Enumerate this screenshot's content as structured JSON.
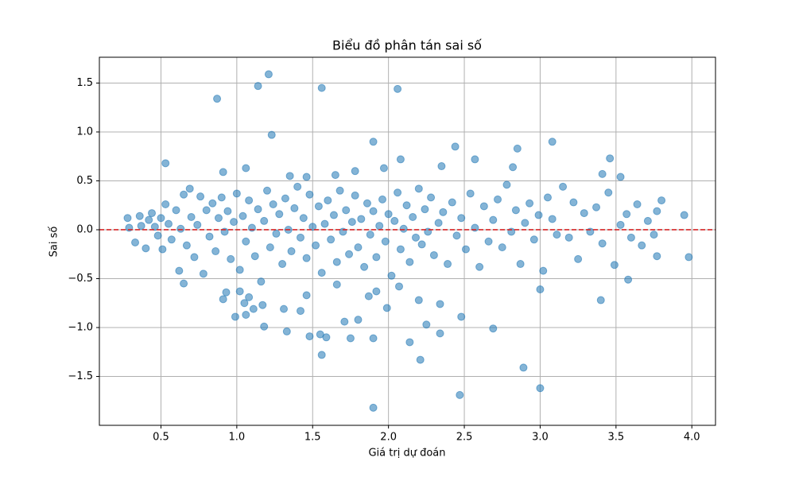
{
  "chart_data": {
    "type": "scatter",
    "title": "Biểu đồ phân tán sai số",
    "x_label": "Giá trị dự đoán",
    "y_label": "Sai số",
    "color": "#1f77b4",
    "reference_line": {
      "value": 0,
      "color": "#d62728"
    },
    "grid": true,
    "xlim": [
      0.094,
      4.156
    ],
    "ylim": [
      -2.0,
      1.764
    ],
    "xticks": [
      0.5,
      {
        "value": 1,
        "label": "1.0"
      },
      1.5,
      {
        "value": 2,
        "label": "2.0"
      },
      2.5,
      {
        "value": 3,
        "label": "3.0"
      },
      3.5,
      {
        "value": 4,
        "label": "4.0"
      }
    ],
    "yticks": [
      {
        "value": -1.5,
        "label": "−1.5"
      },
      {
        "value": -1,
        "label": "−1.0"
      },
      {
        "value": -0.5,
        "label": "−0.5"
      },
      {
        "value": 0,
        "label": "0.0"
      },
      0.5,
      {
        "value": 1,
        "label": "1.0"
      },
      1.5
    ],
    "x": [
      0.87,
      1.14,
      1.21,
      1.56,
      2.06,
      1.23,
      1.9,
      3.08,
      0.53,
      1.06,
      0.91,
      2.44,
      2.57,
      2.85,
      3.46,
      2.08,
      2.35,
      1.97,
      1.65,
      1.35,
      1.46,
      1.78,
      2.82,
      3.41,
      3.53,
      1.9,
      2.47,
      3.0,
      2.89,
      2.21,
      1.56,
      2.14,
      1.75,
      1.9,
      1.48,
      1.55,
      1.59,
      1.33,
      2.34,
      2.25,
      2.69,
      1.18,
      1.71,
      1.8,
      0.99,
      1.06,
      2.48,
      1.99,
      1.31,
      1.42,
      1.11,
      1.05,
      1.17,
      2.34,
      3.4,
      2.2,
      0.91,
      1.08,
      1.87,
      1.66,
      1.46,
      3.0,
      1.92,
      1.02,
      0.93,
      3.58,
      0.65,
      2.07,
      0.28,
      0.29,
      0.33,
      0.36,
      0.37,
      0.4,
      0.42,
      0.44,
      0.46,
      0.48,
      0.5,
      0.51,
      0.53,
      0.55,
      0.57,
      0.6,
      0.62,
      0.63,
      0.65,
      0.67,
      0.69,
      0.7,
      0.72,
      0.74,
      0.76,
      0.78,
      0.8,
      0.82,
      0.84,
      0.86,
      0.88,
      0.9,
      0.92,
      0.94,
      0.96,
      0.98,
      1.0,
      1.02,
      1.04,
      1.06,
      1.08,
      1.1,
      1.12,
      1.14,
      1.16,
      1.18,
      1.2,
      1.22,
      1.24,
      1.26,
      1.28,
      1.3,
      1.32,
      1.34,
      1.36,
      1.38,
      1.4,
      1.42,
      1.44,
      1.46,
      1.48,
      1.5,
      1.52,
      1.54,
      1.56,
      1.58,
      1.6,
      1.62,
      1.64,
      1.66,
      1.68,
      1.7,
      1.72,
      1.74,
      1.76,
      1.78,
      1.8,
      1.82,
      1.84,
      1.86,
      1.88,
      1.9,
      1.92,
      1.94,
      1.96,
      1.98,
      2.0,
      2.02,
      2.04,
      2.06,
      2.08,
      2.1,
      2.12,
      2.14,
      2.16,
      2.18,
      2.2,
      2.22,
      2.24,
      2.26,
      2.28,
      2.3,
      2.33,
      2.36,
      2.39,
      2.42,
      2.45,
      2.48,
      2.51,
      2.54,
      2.57,
      2.6,
      2.63,
      2.66,
      2.69,
      2.72,
      2.75,
      2.78,
      2.81,
      2.84,
      2.87,
      2.9,
      2.93,
      2.96,
      2.99,
      3.02,
      3.05,
      3.08,
      3.11,
      3.15,
      3.19,
      3.22,
      3.25,
      3.29,
      3.33,
      3.37,
      3.41,
      3.45,
      3.49,
      3.53,
      3.57,
      3.6,
      3.64,
      3.67,
      3.71,
      3.75,
      3.77,
      3.8,
      3.77,
      3.95,
      3.98
    ],
    "y": [
      1.34,
      1.47,
      1.59,
      1.45,
      1.44,
      0.97,
      0.9,
      0.9,
      0.68,
      0.63,
      0.59,
      0.85,
      0.72,
      0.83,
      0.73,
      0.72,
      0.65,
      0.63,
      0.56,
      0.55,
      0.54,
      0.6,
      0.64,
      0.57,
      0.54,
      -1.82,
      -1.69,
      -1.62,
      -1.41,
      -1.33,
      -1.28,
      -1.15,
      -1.11,
      -1.11,
      -1.09,
      -1.07,
      -1.1,
      -1.04,
      -1.06,
      -0.97,
      -1.01,
      -0.99,
      -0.94,
      -0.92,
      -0.89,
      -0.87,
      -0.89,
      -0.8,
      -0.81,
      -0.83,
      -0.81,
      -0.75,
      -0.77,
      -0.76,
      -0.72,
      -0.72,
      -0.71,
      -0.69,
      -0.68,
      -0.56,
      -0.67,
      -0.61,
      -0.63,
      -0.63,
      -0.64,
      -0.51,
      -0.55,
      -0.58,
      0.12,
      0.02,
      -0.13,
      0.14,
      0.04,
      -0.19,
      0.1,
      0.17,
      0.03,
      -0.06,
      0.12,
      -0.2,
      0.26,
      0.06,
      -0.1,
      0.2,
      -0.42,
      0.01,
      0.36,
      -0.16,
      0.42,
      0.13,
      -0.28,
      0.05,
      0.34,
      -0.45,
      0.2,
      -0.07,
      0.27,
      -0.22,
      0.12,
      0.33,
      -0.02,
      0.19,
      -0.3,
      0.08,
      0.37,
      -0.41,
      0.14,
      -0.12,
      0.3,
      0.02,
      -0.27,
      0.21,
      -0.53,
      0.09,
      0.4,
      -0.18,
      0.26,
      -0.04,
      0.16,
      -0.35,
      0.32,
      0.0,
      -0.22,
      0.22,
      0.44,
      -0.08,
      0.12,
      -0.29,
      0.36,
      0.03,
      -0.16,
      0.24,
      -0.44,
      0.06,
      0.3,
      -0.1,
      0.15,
      -0.33,
      0.4,
      -0.02,
      0.2,
      -0.25,
      0.08,
      0.35,
      -0.18,
      0.11,
      -0.38,
      0.27,
      -0.05,
      0.19,
      -0.28,
      0.04,
      0.31,
      -0.12,
      0.16,
      -0.47,
      0.09,
      0.38,
      -0.2,
      0.01,
      0.25,
      -0.33,
      0.13,
      -0.08,
      0.42,
      -0.15,
      0.21,
      -0.02,
      0.33,
      -0.26,
      0.07,
      0.18,
      -0.35,
      0.28,
      -0.06,
      0.12,
      -0.2,
      0.37,
      0.02,
      -0.38,
      0.24,
      -0.12,
      0.1,
      0.31,
      -0.18,
      0.46,
      -0.02,
      0.2,
      -0.35,
      0.07,
      0.27,
      -0.1,
      0.15,
      -0.42,
      0.33,
      0.11,
      -0.05,
      0.44,
      -0.08,
      0.28,
      -0.3,
      0.17,
      -0.02,
      0.23,
      -0.14,
      0.38,
      -0.36,
      0.05,
      0.16,
      -0.08,
      0.26,
      -0.16,
      0.09,
      -0.05,
      0.19,
      0.3,
      -0.27,
      0.15,
      -0.28
    ]
  }
}
